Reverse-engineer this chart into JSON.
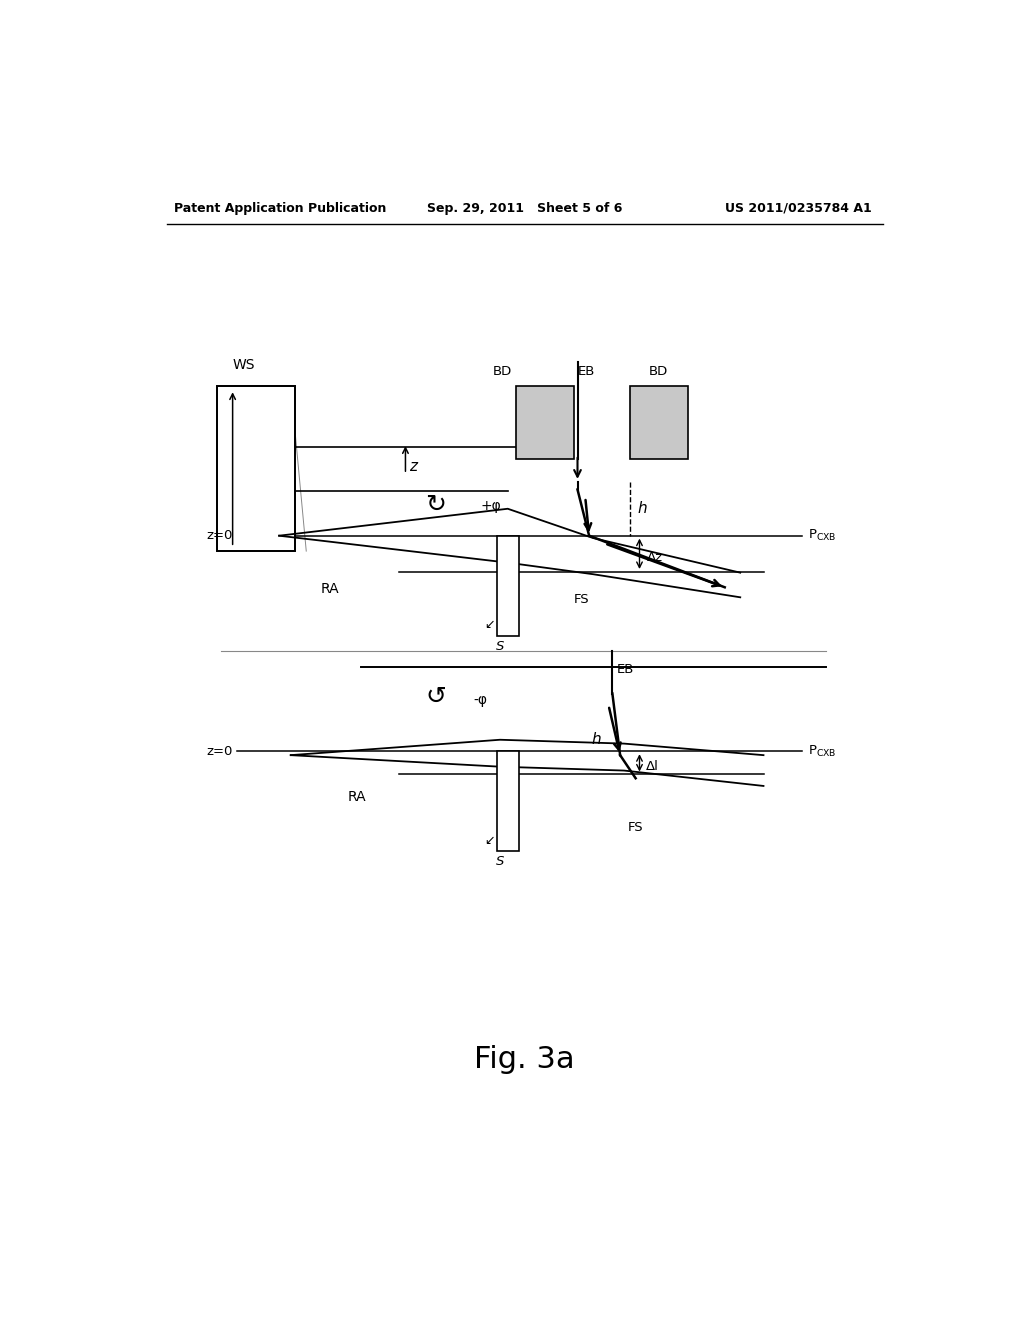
{
  "bg_color": "#ffffff",
  "lc": "#000000",
  "header_left": "Patent Application Publication",
  "header_center": "Sep. 29, 2011   Sheet 5 of 6",
  "header_right": "US 2011/0235784 A1",
  "caption": "Fig. 3a",
  "figsize": [
    10.24,
    13.2
  ],
  "dpi": 100,
  "gray_bd": "#c8c8c8",
  "gray_ws": "#d4d4d4"
}
